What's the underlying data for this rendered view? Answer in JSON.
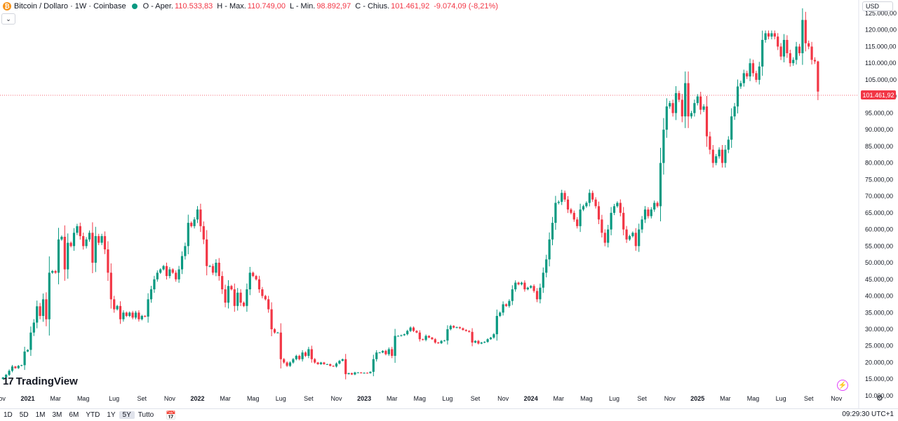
{
  "header": {
    "logo_symbol": "₿",
    "symbol": "Bitcoin / Dollaro · 1W · Coinbase",
    "ohlc": [
      {
        "key": "O - Aper.",
        "value": "110.533,83"
      },
      {
        "key": "H - Max.",
        "value": "110.749,00"
      },
      {
        "key": "L - Min.",
        "value": "98.892,97"
      },
      {
        "key": "C - Chius.",
        "value": "101.461,92"
      },
      {
        "key": "",
        "value": "-9.074,09 (-8,21%)"
      }
    ],
    "collapse_icon": "chevron-down-icon",
    "collapse_glyph": "⌄"
  },
  "currency": {
    "label": "USD",
    "icon": "chevron-down-icon"
  },
  "last_price": {
    "label": "101.461,92",
    "value": 101461.92,
    "color": "#f23645"
  },
  "brand": {
    "mark": "17",
    "name": "TradingView"
  },
  "colors": {
    "up": "#089981",
    "down": "#f23645",
    "grid_text": "#131722",
    "price_line": "#f23645"
  },
  "bottom": {
    "timeframes": [
      "1D",
      "5D",
      "1M",
      "3M",
      "6M",
      "YTD",
      "1Y",
      "5Y",
      "Tutto"
    ],
    "active_timeframe": "5Y",
    "date_range_icon": "calendar-icon",
    "date_range_glyph": "📅",
    "clock": "09:29:30 UTC+1",
    "settings_icon": "gear-icon",
    "settings_glyph": "⚙",
    "flash_icon": "lightning-icon",
    "flash_glyph": "⚡"
  },
  "chart_data": {
    "type": "candlestick",
    "ylim": [
      6200,
      129000
    ],
    "y_ticks": [
      {
        "value": 125000,
        "label": "125.000,00"
      },
      {
        "value": 120000,
        "label": "120.000,00"
      },
      {
        "value": 115000,
        "label": "115.000,00"
      },
      {
        "value": 110000,
        "label": "110.000,00"
      },
      {
        "value": 105000,
        "label": "105.000,00"
      },
      {
        "value": 100000,
        "label": "100.000,00"
      },
      {
        "value": 95000,
        "label": "95.000,00"
      },
      {
        "value": 90000,
        "label": "90.000,00"
      },
      {
        "value": 85000,
        "label": "85.000,00"
      },
      {
        "value": 80000,
        "label": "80.000,00"
      },
      {
        "value": 75000,
        "label": "75.000,00"
      },
      {
        "value": 70000,
        "label": "70.000,00"
      },
      {
        "value": 65000,
        "label": "65.000,00"
      },
      {
        "value": 60000,
        "label": "60.000,00"
      },
      {
        "value": 55000,
        "label": "55.000,00"
      },
      {
        "value": 50000,
        "label": "50.000,00"
      },
      {
        "value": 45000,
        "label": "45.000,00"
      },
      {
        "value": 40000,
        "label": "40.000,00"
      },
      {
        "value": 35000,
        "label": "35.000,00"
      },
      {
        "value": 30000,
        "label": "30.000,00"
      },
      {
        "value": 25000,
        "label": "25.000,00"
      },
      {
        "value": 20000,
        "label": "20.000,00"
      },
      {
        "value": 15000,
        "label": "15.000,00"
      },
      {
        "value": 10000,
        "label": "10.000,00"
      }
    ],
    "x_ticks": [
      {
        "week": -1,
        "label": "Nov",
        "bold": false
      },
      {
        "week": 8,
        "label": "2021",
        "bold": true
      },
      {
        "week": 17,
        "label": "Mar",
        "bold": false
      },
      {
        "week": 26,
        "label": "Mag",
        "bold": false
      },
      {
        "week": 36,
        "label": "Lug",
        "bold": false
      },
      {
        "week": 45,
        "label": "Set",
        "bold": false
      },
      {
        "week": 54,
        "label": "Nov",
        "bold": false
      },
      {
        "week": 63,
        "label": "2022",
        "bold": true
      },
      {
        "week": 72,
        "label": "Mar",
        "bold": false
      },
      {
        "week": 81,
        "label": "Mag",
        "bold": false
      },
      {
        "week": 90,
        "label": "Lug",
        "bold": false
      },
      {
        "week": 99,
        "label": "Set",
        "bold": false
      },
      {
        "week": 108,
        "label": "Nov",
        "bold": false
      },
      {
        "week": 117,
        "label": "2023",
        "bold": true
      },
      {
        "week": 126,
        "label": "Mar",
        "bold": false
      },
      {
        "week": 135,
        "label": "Mag",
        "bold": false
      },
      {
        "week": 144,
        "label": "Lug",
        "bold": false
      },
      {
        "week": 153,
        "label": "Set",
        "bold": false
      },
      {
        "week": 162,
        "label": "Nov",
        "bold": false
      },
      {
        "week": 171,
        "label": "2024",
        "bold": true
      },
      {
        "week": 180,
        "label": "Mar",
        "bold": false
      },
      {
        "week": 189,
        "label": "Mag",
        "bold": false
      },
      {
        "week": 198,
        "label": "Lug",
        "bold": false
      },
      {
        "week": 207,
        "label": "Set",
        "bold": false
      },
      {
        "week": 216,
        "label": "Nov",
        "bold": false
      },
      {
        "week": 225,
        "label": "2025",
        "bold": true
      },
      {
        "week": 234,
        "label": "Mar",
        "bold": false
      },
      {
        "week": 243,
        "label": "Mag",
        "bold": false
      },
      {
        "week": 252,
        "label": "Lug",
        "bold": false
      },
      {
        "week": 261,
        "label": "Set",
        "bold": false
      },
      {
        "week": 270,
        "label": "Nov",
        "bold": false
      }
    ],
    "closes": [
      15500,
      16300,
      17500,
      18800,
      18300,
      19000,
      19200,
      23300,
      23800,
      29000,
      32000,
      36900,
      34000,
      39000,
      33000,
      47000,
      47500,
      47000,
      57000,
      57800,
      48000,
      56000,
      55000,
      59000,
      61000,
      58000,
      55000,
      57000,
      59000,
      50000,
      58000,
      56000,
      58000,
      54000,
      47000,
      39000,
      36000,
      37000,
      33000,
      35000,
      34000,
      35000,
      33500,
      35000,
      33000,
      34000,
      33800,
      39000,
      42000,
      45000,
      47000,
      48000,
      49000,
      46000,
      48000,
      47000,
      45000,
      48000,
      52000,
      55000,
      62000,
      61000,
      63000,
      66000,
      61000,
      57000,
      49000,
      49000,
      47000,
      50000,
      46000,
      42000,
      38000,
      43000,
      42000,
      37000,
      41000,
      38000,
      37000,
      42000,
      47000,
      46000,
      45000,
      42000,
      40000,
      39000,
      36000,
      30000,
      29000,
      29000,
      21000,
      20000,
      19000,
      20000,
      21000,
      22000,
      21000,
      23000,
      22000,
      24000,
      21000,
      20000,
      19500,
      20000,
      19500,
      19500,
      19000,
      18800,
      19700,
      20500,
      21000,
      16500,
      16800,
      16400,
      17000,
      17000,
      16800,
      16900,
      16800,
      17200,
      21000,
      23000,
      23000,
      23500,
      22500,
      24000,
      22000,
      28000,
      28000,
      28200,
      28500,
      29500,
      30500,
      29500,
      29000,
      27000,
      26800,
      28000,
      27500,
      27000,
      26000,
      25800,
      26500,
      26600,
      30000,
      31000,
      30500,
      30600,
      30300,
      29800,
      29500,
      29200,
      26000,
      26500,
      25700,
      26000,
      26200,
      27000,
      27500,
      28500,
      34000,
      35000,
      37500,
      37000,
      38500,
      42000,
      44000,
      43500,
      44000,
      42000,
      42500,
      43000,
      41500,
      39000,
      42500,
      47000,
      51000,
      57000,
      62000,
      68000,
      68300,
      71000,
      69000,
      66000,
      65000,
      63000,
      61000,
      66000,
      67000,
      68000,
      71000,
      69000,
      67000,
      63000,
      59000,
      56000,
      60000,
      65000,
      67000,
      68000,
      65000,
      60000,
      57000,
      58000,
      59000,
      55000,
      60000,
      63000,
      66000,
      64000,
      66000,
      68000,
      67000,
      80000,
      90000,
      97000,
      98000,
      95000,
      101000,
      99000,
      94000,
      104000,
      94000,
      95000,
      98000,
      100000,
      96000,
      97000,
      88000,
      84000,
      80000,
      82000,
      84000,
      80000,
      84000,
      87000,
      94000,
      97000,
      103000,
      104000,
      107000,
      106000,
      110000,
      107000,
      105000,
      109000,
      117000,
      119000,
      118000,
      119000,
      118000,
      115000,
      112000,
      117000,
      113000,
      110000,
      111000,
      115000,
      113000,
      123000,
      116000,
      115000,
      111000,
      110533.83,
      101461.92
    ],
    "last_candle": {
      "open": 110533.83,
      "high": 110749.0,
      "low": 98892.97,
      "close": 101461.92
    }
  }
}
